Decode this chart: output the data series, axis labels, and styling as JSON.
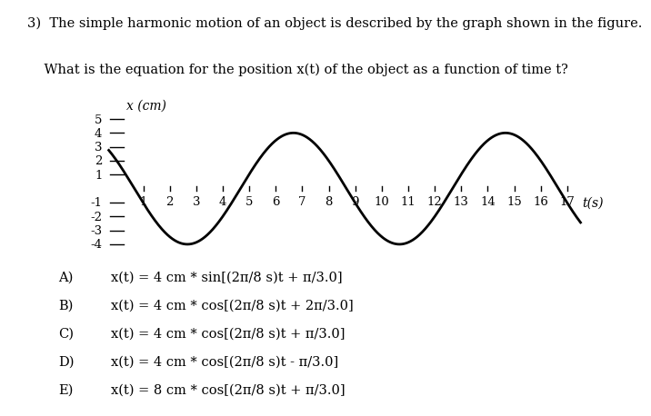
{
  "title_line1": "3)  The simple harmonic motion of an object is described by the graph shown in the figure.",
  "title_line2": "    What is the equation for the position x(t) of the object as a function of time t?",
  "amplitude": 4,
  "omega": 0.7853981633974483,
  "phi": 1.0471975511965976,
  "t_start": -0.3,
  "t_end": 17.5,
  "ylim": [
    -4.8,
    5.8
  ],
  "xlim": [
    -0.8,
    18.3
  ],
  "ylabel": "x (cm)",
  "xlabel": "t(s)",
  "yticks": [
    -4,
    -3,
    -2,
    -1,
    1,
    2,
    3,
    4,
    5
  ],
  "xticks": [
    1,
    2,
    3,
    4,
    5,
    6,
    7,
    8,
    9,
    10,
    11,
    12,
    13,
    14,
    15,
    16,
    17
  ],
  "curve_color": "#000000",
  "curve_linewidth": 2.0,
  "background_color": "#ffffff",
  "choice_labels": [
    "A)",
    "B)",
    "C)",
    "D)",
    "E)"
  ],
  "choice_texts": [
    "x(t) = 4 cm * sin[(2π/8 s)t + π/3.0]",
    "x(t) = 4 cm * cos[(2π/8 s)t + 2π/3.0]",
    "x(t) = 4 cm * cos[(2π/8 s)t + π/3.0]",
    "x(t) = 4 cm * cos[(2π/8 s)t - π/3.0]",
    "x(t) = 8 cm * cos[(2π/8 s)t + π/3.0]"
  ],
  "title_fontsize": 10.5,
  "choices_fontsize": 10.5,
  "axis_label_fontsize": 10,
  "tick_fontsize": 9.5
}
